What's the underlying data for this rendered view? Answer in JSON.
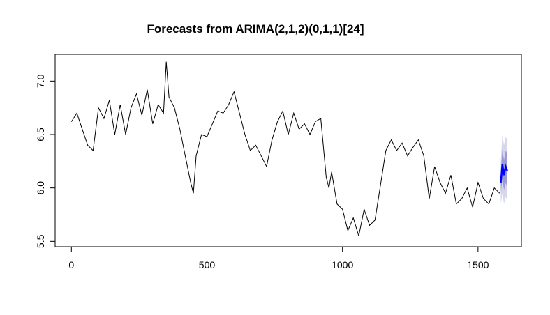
{
  "chart_data": {
    "type": "line",
    "title": "Forecasts from ARIMA(2,1,2)(0,1,1)[24]",
    "xlabel": "",
    "ylabel": "",
    "xlim": [
      -60,
      1660
    ],
    "ylim": [
      5.45,
      7.25
    ],
    "x_ticks": [
      0,
      500,
      1000,
      1500
    ],
    "x_tick_labels": [
      "0",
      "500",
      "1000",
      "1500"
    ],
    "y_ticks": [
      5.5,
      6.0,
      6.5,
      7.0
    ],
    "y_tick_labels": [
      "5.5",
      "6.0",
      "6.5",
      "7.0"
    ],
    "grid": false,
    "colors": {
      "series": "#000000",
      "forecast": "#0000ff",
      "ci80": "#9a9ad6",
      "ci95": "#d6d6ec"
    },
    "series": [
      {
        "x": [
          0,
          20,
          40,
          60,
          80,
          100,
          120,
          140,
          160,
          180,
          200,
          220,
          240,
          260,
          280,
          300,
          320,
          340,
          350,
          360,
          380,
          400,
          420,
          440,
          450,
          460,
          480,
          500,
          520,
          540,
          560,
          580,
          600,
          620,
          640,
          660,
          680,
          700,
          720,
          740,
          760,
          780,
          800,
          820,
          840,
          860,
          880,
          900,
          920,
          940,
          950,
          960,
          980,
          1000,
          1020,
          1040,
          1060,
          1080,
          1100,
          1120,
          1140,
          1160,
          1180,
          1200,
          1220,
          1240,
          1260,
          1280,
          1300,
          1320,
          1340,
          1360,
          1380,
          1400,
          1420,
          1440,
          1460,
          1480,
          1500,
          1520,
          1540,
          1560,
          1580
        ],
        "values": [
          6.62,
          6.7,
          6.55,
          6.4,
          6.35,
          6.75,
          6.65,
          6.82,
          6.5,
          6.78,
          6.5,
          6.75,
          6.88,
          6.68,
          6.92,
          6.6,
          6.78,
          6.7,
          7.18,
          6.85,
          6.75,
          6.55,
          6.3,
          6.05,
          5.95,
          6.3,
          6.5,
          6.48,
          6.6,
          6.72,
          6.7,
          6.78,
          6.9,
          6.7,
          6.5,
          6.35,
          6.4,
          6.3,
          6.2,
          6.45,
          6.62,
          6.72,
          6.5,
          6.7,
          6.55,
          6.6,
          6.5,
          6.62,
          6.65,
          6.1,
          6.0,
          6.15,
          5.85,
          5.8,
          5.6,
          5.72,
          5.55,
          5.8,
          5.65,
          5.7,
          6.02,
          6.35,
          6.45,
          6.35,
          6.42,
          6.3,
          6.38,
          6.45,
          6.3,
          5.9,
          6.2,
          6.05,
          5.95,
          6.12,
          5.85,
          5.9,
          6.0,
          5.82,
          6.05,
          5.9,
          5.85,
          6.0,
          5.95
        ]
      },
      {
        "name": "forecast",
        "x": [
          1584,
          1590,
          1596,
          1602,
          1608
        ],
        "values": [
          6.05,
          6.22,
          6.12,
          6.2,
          6.16
        ],
        "lower80": [
          5.95,
          6.08,
          5.98,
          6.05,
          6.0
        ],
        "upper80": [
          6.15,
          6.36,
          6.26,
          6.35,
          6.32
        ],
        "lower95": [
          5.85,
          5.95,
          5.85,
          5.92,
          5.88
        ],
        "upper95": [
          6.25,
          6.5,
          6.4,
          6.48,
          6.45
        ]
      }
    ]
  }
}
